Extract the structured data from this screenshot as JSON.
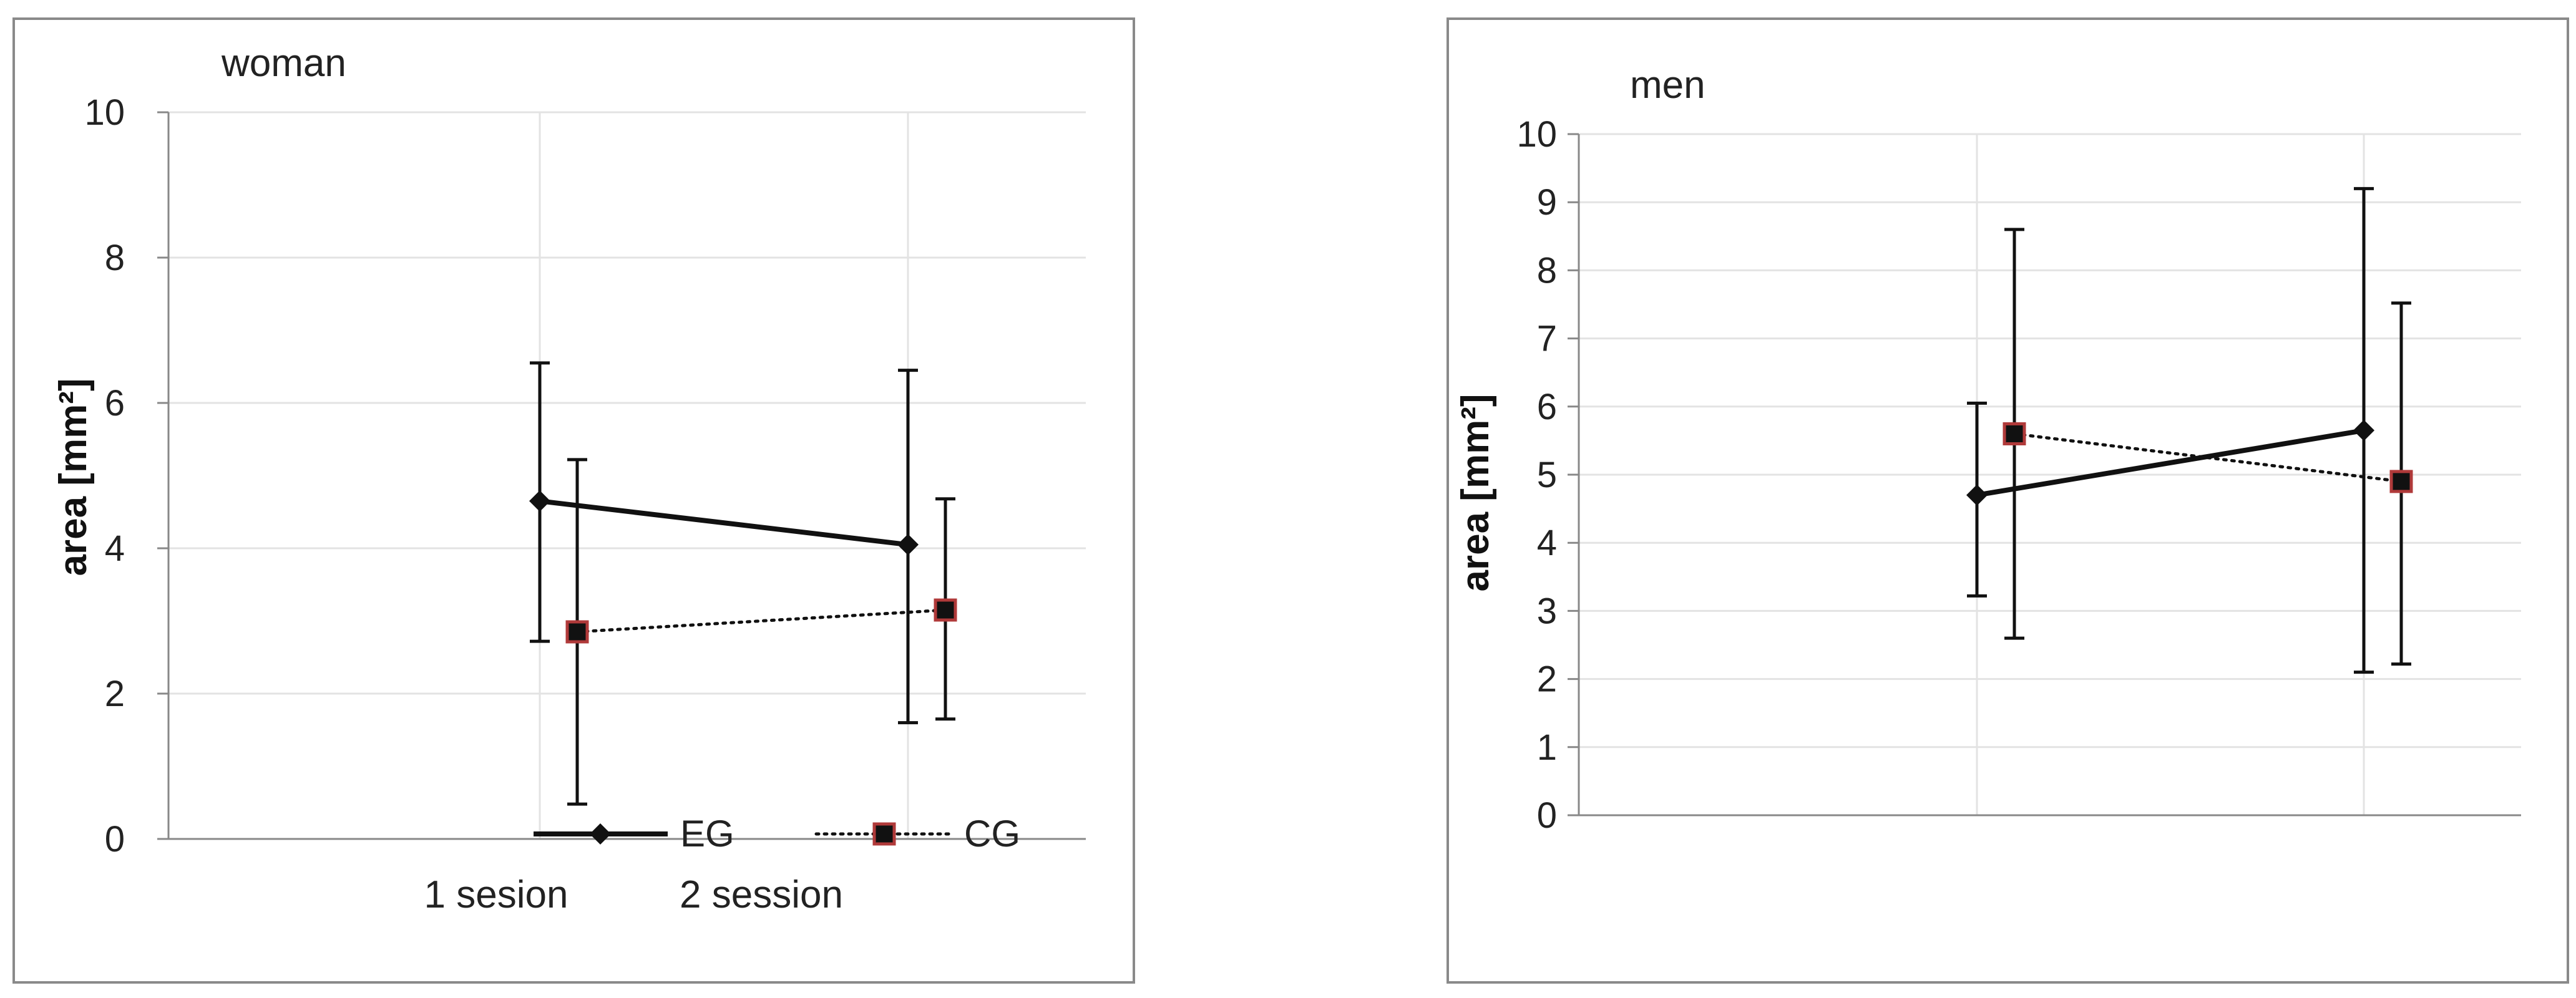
{
  "colors": {
    "eg": "#111111",
    "cg_fill": "#111111",
    "cg_stroke": "#b03a3a",
    "grid": "#e3e3e3",
    "frame": "#8a8a8a"
  },
  "chart_data": [
    {
      "type": "line",
      "title": "woman",
      "ylabel": "area [mm²]",
      "xlabel": "",
      "categories": [
        "1 sesion",
        "2 session"
      ],
      "ylim": [
        0,
        10
      ],
      "yticks": [
        0,
        2,
        4,
        6,
        8,
        10
      ],
      "grid": true,
      "legend": "bottom",
      "series": [
        {
          "name": "EG",
          "style": "solid",
          "marker": "diamond",
          "values": [
            4.65,
            4.05
          ],
          "err_low": [
            2.72,
            1.6
          ],
          "err_high": [
            6.55,
            6.45
          ]
        },
        {
          "name": "CG",
          "style": "dotted",
          "marker": "square",
          "values": [
            2.85,
            3.15
          ],
          "err_low": [
            0.48,
            1.65
          ],
          "err_high": [
            5.22,
            4.68
          ]
        }
      ]
    },
    {
      "type": "line",
      "title": "men",
      "ylabel": "area [mm²]",
      "xlabel": "",
      "categories": [
        "",
        ""
      ],
      "ylim": [
        0,
        10
      ],
      "yticks": [
        0,
        1,
        2,
        3,
        4,
        5,
        6,
        7,
        8,
        9,
        10
      ],
      "grid": true,
      "legend": "none",
      "series": [
        {
          "name": "EG",
          "style": "solid",
          "marker": "diamond",
          "values": [
            4.7,
            5.65
          ],
          "err_low": [
            3.22,
            2.1
          ],
          "err_high": [
            6.05,
            9.2
          ]
        },
        {
          "name": "CG",
          "style": "dotted",
          "marker": "square",
          "values": [
            5.6,
            4.9
          ],
          "err_low": [
            2.6,
            2.22
          ],
          "err_high": [
            8.6,
            7.52
          ]
        }
      ]
    }
  ]
}
